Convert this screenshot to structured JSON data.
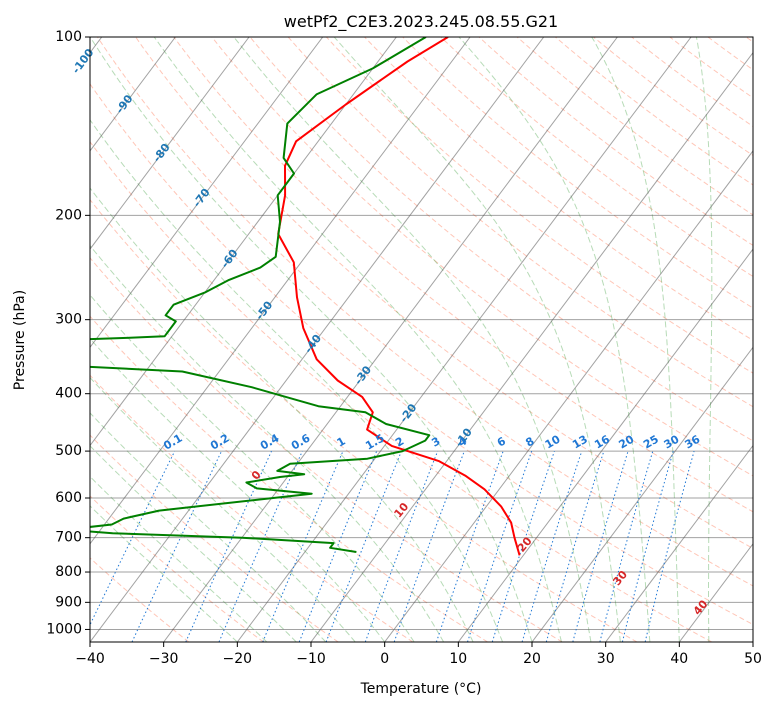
{
  "chart_data": {
    "type": "line",
    "subtype": "skew-T log-P diagram",
    "title": "wetPf2_C2E3.2023.245.08.55.G21",
    "xlabel": "Temperature (°C)",
    "ylabel": "Pressure (hPa)",
    "xlim": [
      -40,
      50
    ],
    "ylim": [
      1050,
      100
    ],
    "yscale": "log",
    "grid": true,
    "xticks": [
      "−40",
      "−30",
      "−20",
      "−10",
      "0",
      "10",
      "20",
      "30",
      "40",
      "50"
    ],
    "yticks": [
      "100",
      "200",
      "300",
      "400",
      "500",
      "600",
      "700",
      "800",
      "900",
      "1000"
    ],
    "ytick_values": [
      100,
      200,
      300,
      400,
      500,
      600,
      700,
      800,
      900,
      1000
    ],
    "colors": {
      "temperature": "#ff0000",
      "dewpoint": "#008000",
      "isotherm": "#555555",
      "dry_adiabat": "#ff8060",
      "moist_adiabat": "#60b060",
      "mixing_ratio": "#1f77d4",
      "isotherm_label": "#1f77b4",
      "theta_label": "#d62728"
    },
    "isotherm_labels": [
      "-100",
      "-90",
      "-80",
      "-70",
      "-60",
      "-50",
      "-40",
      "-30",
      "-20",
      "-10"
    ],
    "isotherm_label_values": [
      -100,
      -90,
      -80,
      -70,
      -60,
      -50,
      -40,
      -30,
      -20,
      -10
    ],
    "isotherm_label_pressures": [
      110,
      130,
      157,
      187,
      237,
      290,
      330,
      373,
      432,
      475
    ],
    "mixing_ratio_labels": [
      "0.1",
      "0.2",
      "0.4",
      "0.6",
      "1",
      "1.5",
      "2",
      "3",
      "4",
      "6",
      "8",
      "10",
      "13",
      "16",
      "20",
      "25",
      "30",
      "36"
    ],
    "mixing_ratio_values": [
      0.1,
      0.2,
      0.4,
      0.6,
      1,
      1.5,
      2,
      3,
      4,
      6,
      8,
      10,
      13,
      16,
      20,
      25,
      30,
      36
    ],
    "theta_labels": [
      "0",
      "10",
      "20",
      "30",
      "40"
    ],
    "theta_label_values": [
      0,
      10,
      20,
      30,
      40
    ],
    "theta_label_pressures": [
      550,
      630,
      720,
      820,
      920
    ],
    "series": [
      {
        "key": "temperature",
        "points": [
          [
            -53,
            100
          ],
          [
            -56,
            110
          ],
          [
            -60,
            130
          ],
          [
            -63,
            150
          ],
          [
            -62,
            165
          ],
          [
            -59,
            185
          ],
          [
            -56,
            215
          ],
          [
            -51,
            240
          ],
          [
            -47,
            275
          ],
          [
            -43,
            310
          ],
          [
            -38,
            350
          ],
          [
            -33,
            380
          ],
          [
            -28,
            405
          ],
          [
            -25,
            430
          ],
          [
            -24,
            460
          ],
          [
            -19,
            490
          ],
          [
            -11,
            520
          ],
          [
            -6,
            550
          ],
          [
            -2,
            580
          ],
          [
            2,
            620
          ],
          [
            5,
            660
          ],
          [
            7,
            700
          ],
          [
            9.5,
            750
          ]
        ]
      },
      {
        "key": "dewpoint",
        "points": [
          [
            -56,
            100
          ],
          [
            -60,
            113
          ],
          [
            -65,
            125
          ],
          [
            -66,
            140
          ],
          [
            -63,
            160
          ],
          [
            -60,
            170
          ],
          [
            -60,
            185
          ],
          [
            -57,
            205
          ],
          [
            -54,
            235
          ],
          [
            -55,
            245
          ],
          [
            -58,
            257
          ],
          [
            -60,
            270
          ],
          [
            -63,
            283
          ],
          [
            -63,
            295
          ],
          [
            -61,
            302
          ],
          [
            -61,
            320
          ],
          [
            -66,
            322
          ],
          [
            -90,
            330
          ],
          [
            -87,
            340
          ],
          [
            -89,
            350
          ],
          [
            -75,
            357
          ],
          [
            -55,
            367
          ],
          [
            -44,
            390
          ],
          [
            -33,
            420
          ],
          [
            -26,
            430
          ],
          [
            -22,
            450
          ],
          [
            -15,
            470
          ],
          [
            -15,
            480
          ],
          [
            -17,
            500
          ],
          [
            -21,
            515
          ],
          [
            -31,
            525
          ],
          [
            -32,
            540
          ],
          [
            -28,
            547
          ],
          [
            -31,
            553
          ],
          [
            -35,
            565
          ],
          [
            -33,
            578
          ],
          [
            -25,
            590
          ],
          [
            -44,
            630
          ],
          [
            -48,
            650
          ],
          [
            -49,
            665
          ],
          [
            -52,
            672
          ],
          [
            -55,
            678
          ],
          [
            -48,
            688
          ],
          [
            -30,
            700
          ],
          [
            -17,
            715
          ],
          [
            -17,
            728
          ],
          [
            -13,
            740
          ]
        ]
      }
    ]
  }
}
